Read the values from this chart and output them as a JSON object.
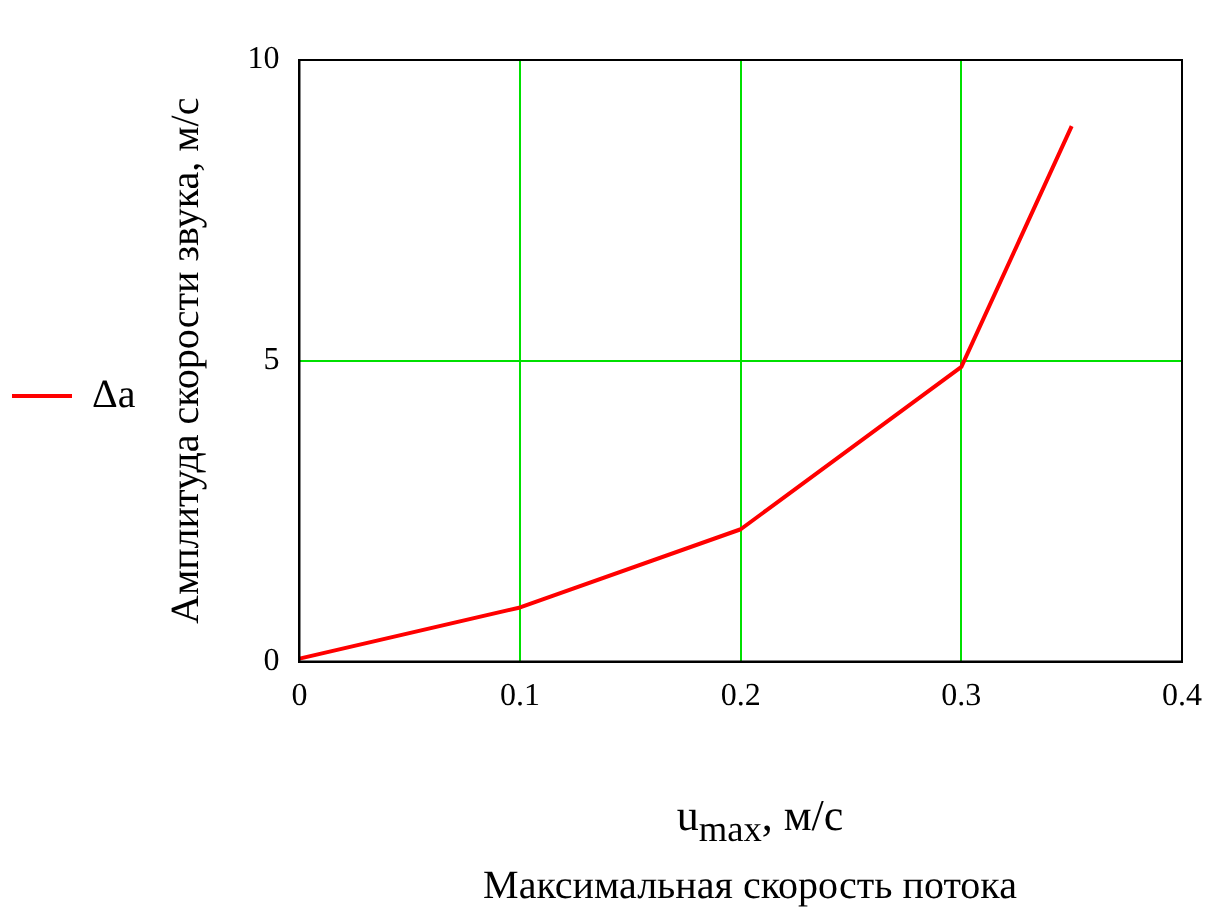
{
  "chart_data": {
    "type": "line",
    "xlabel": "u$_{max}$, м/с",
    "ylabel": "Амплитуда скорости звука, м/с",
    "x": [
      0,
      0.1,
      0.2,
      0.3,
      0.35
    ],
    "series": [
      {
        "name": "Δa",
        "color": "#ff0000",
        "values": [
          0.05,
          0.9,
          2.2,
          4.9,
          8.9
        ]
      }
    ],
    "xlim": [
      0,
      0.4
    ],
    "xticks": [
      0,
      0.1,
      0.2,
      0.3,
      0.4
    ],
    "ylim": [
      0,
      10
    ],
    "yticks": [
      0,
      5,
      10
    ],
    "grid": true,
    "legend": "left",
    "marker": "none",
    "line_style": "solid",
    "annotations": [
      "Максимальная скорость потока"
    ]
  }
}
